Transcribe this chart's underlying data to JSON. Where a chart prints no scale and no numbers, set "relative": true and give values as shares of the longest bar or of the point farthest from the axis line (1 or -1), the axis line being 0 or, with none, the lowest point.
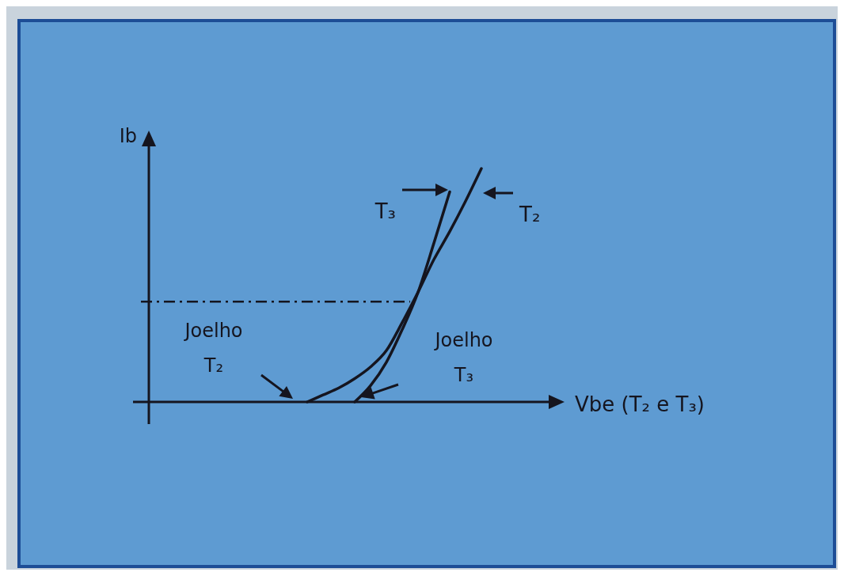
{
  "chart_data": {
    "type": "line",
    "relative": true,
    "xlabel": "Vbe (T₂ e T₃)",
    "ylabel": "Ib",
    "categories": [
      null,
      null,
      null,
      null,
      null,
      null,
      null,
      null,
      null,
      null,
      null,
      null,
      null,
      null,
      null,
      null,
      null,
      null,
      null,
      null,
      null,
      null,
      null,
      null,
      null,
      null,
      null
    ],
    "series": [
      {
        "name": "T₃",
        "color": "#15151f",
        "values": [
          null,
          null,
          null,
          null,
          null,
          null,
          null,
          null,
          null,
          null,
          null,
          null,
          null,
          0,
          0.07,
          0.17,
          0.31,
          0.47,
          0.68,
          0.9,
          null,
          null,
          null,
          null,
          null,
          null,
          null
        ]
      },
      {
        "name": "T₂",
        "color": "#15151f",
        "values": [
          null,
          null,
          null,
          null,
          null,
          null,
          null,
          null,
          null,
          null,
          0,
          0.03,
          0.06,
          0.1,
          0.15,
          0.22,
          0.34,
          0.47,
          0.61,
          0.73,
          0.86,
          1,
          null,
          null,
          null,
          null,
          null
        ]
      }
    ],
    "ref_lines": [
      {
        "axis": "y",
        "value": 0.43,
        "line_style": "dashed",
        "color": "#15151f"
      }
    ],
    "annotations": [
      "Joelho T₂",
      "Joelho T₃"
    ]
  }
}
